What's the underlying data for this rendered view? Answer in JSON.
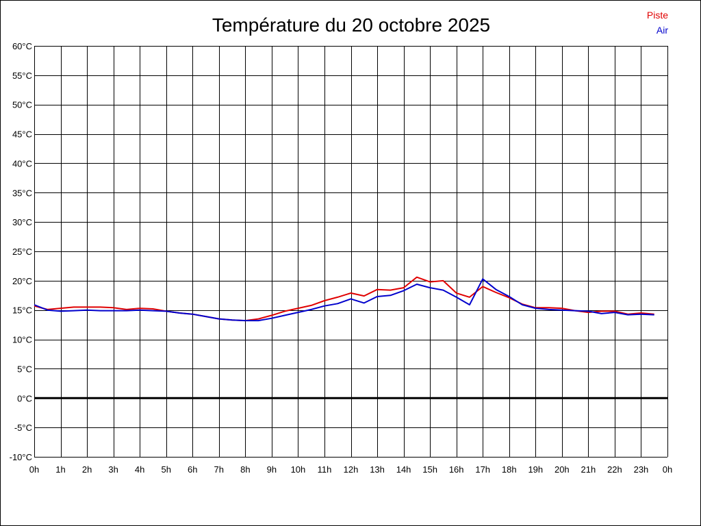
{
  "chart_data": {
    "type": "line",
    "title": "Température du 20 octobre 2025",
    "ylim": [
      -10,
      60
    ],
    "y_ticks": [
      "60°C",
      "55°C",
      "50°C",
      "45°C",
      "40°C",
      "35°C",
      "30°C",
      "25°C",
      "20°C",
      "15°C",
      "10°C",
      "5°C",
      "0°C",
      "-5°C",
      "-10°C"
    ],
    "x_ticks": [
      "0h",
      "1h",
      "2h",
      "3h",
      "4h",
      "5h",
      "6h",
      "7h",
      "8h",
      "9h",
      "10h",
      "11h",
      "12h",
      "13h",
      "14h",
      "15h",
      "16h",
      "17h",
      "18h",
      "19h",
      "20h",
      "21h",
      "22h",
      "23h",
      "0h"
    ],
    "grid": true,
    "zero_line": true,
    "legend_position": "top-right",
    "x": [
      0,
      0.5,
      1,
      1.5,
      2,
      2.5,
      3,
      3.5,
      4,
      4.5,
      5,
      5.5,
      6,
      6.5,
      7,
      7.5,
      8,
      8.5,
      9,
      9.5,
      10,
      10.5,
      11,
      11.5,
      12,
      12.5,
      13,
      13.5,
      14,
      14.5,
      15,
      15.5,
      16,
      16.5,
      17,
      17.5,
      18,
      18.5,
      19,
      19.5,
      20,
      20.5,
      21,
      21.5,
      22,
      22.5,
      23,
      23.5
    ],
    "series": [
      {
        "name": "Piste",
        "color": "#e00000",
        "values": [
          15.7,
          15.1,
          15.3,
          15.5,
          15.5,
          15.5,
          15.4,
          15.1,
          15.3,
          15.2,
          14.8,
          14.5,
          14.3,
          13.9,
          13.5,
          13.3,
          13.2,
          13.5,
          14.1,
          14.8,
          15.3,
          15.8,
          16.6,
          17.2,
          17.9,
          17.4,
          18.5,
          18.4,
          18.8,
          20.6,
          19.8,
          20.0,
          17.9,
          17.2,
          19.0,
          18.0,
          17.1,
          16.0,
          15.4,
          15.4,
          15.3,
          14.9,
          14.6,
          14.8,
          14.8,
          14.3,
          14.5,
          14.3
        ]
      },
      {
        "name": "Air",
        "color": "#0000cc",
        "values": [
          15.9,
          15.0,
          14.8,
          14.9,
          15.0,
          14.9,
          14.9,
          14.9,
          15.0,
          14.9,
          14.8,
          14.5,
          14.3,
          13.9,
          13.5,
          13.3,
          13.2,
          13.2,
          13.6,
          14.1,
          14.6,
          15.1,
          15.7,
          16.1,
          16.9,
          16.2,
          17.3,
          17.5,
          18.3,
          19.4,
          18.8,
          18.4,
          17.2,
          15.9,
          20.3,
          18.5,
          17.3,
          15.9,
          15.3,
          15.1,
          15.0,
          14.9,
          14.8,
          14.4,
          14.6,
          14.2,
          14.3,
          14.2
        ]
      }
    ]
  }
}
